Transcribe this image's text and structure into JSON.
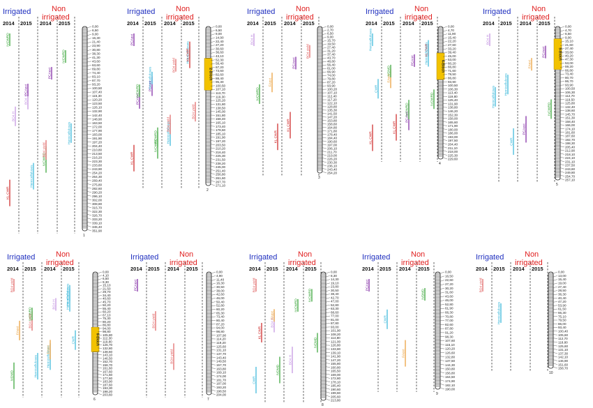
{
  "headers": {
    "irrigated": "Irrigated",
    "non_irrigated_line1": "Non",
    "non_irrigated_line2": "irrigated",
    "year_2014": "2014",
    "year_2015": "2015"
  },
  "colors": {
    "irrigated": "#1f2fbf",
    "non_irrigated": "#e02020",
    "bioch_region": "#f2c200",
    "PCAext": "#7a1fa0",
    "PCAmt": "#7a1fa0",
    "IVCWRD": "#2ea02e",
    "KL_CWR": "#cc1f1f",
    "BO4_yield": "#e06060",
    "Hemicelluloses": "#33b5d8",
    "CWR": "#33b5d8",
    "FAext": "#e89a30",
    "BO4_H": "#c090e0"
  },
  "linkage_groups": [
    {
      "id": "1",
      "positions": [
        "0,00",
        "6,50",
        "9,00",
        "16,30",
        "21,40",
        "23,90",
        "30,80",
        "38,30",
        "41,30",
        "43,60",
        "63,60",
        "69,80",
        "74,40",
        "83,10",
        "87,70",
        "93,20",
        "100,50",
        "107,40",
        "115,30",
        "120,20",
        "123,50",
        "126,10",
        "132,90",
        "142,40",
        "148,90",
        "163,50",
        "172,00",
        "177,90",
        "183,00",
        "191,90",
        "197,20",
        "204,40",
        "210,80",
        "213,50",
        "216,20",
        "223,30",
        "233,60",
        "243,90",
        "254,20",
        "264,30",
        "269,40",
        "275,80",
        "282,60",
        "290,20",
        "296,10",
        "302,00",
        "308,80",
        "315,70",
        "322,30",
        "326,70",
        "333,20",
        "339,10",
        "345,40",
        "351,90"
      ],
      "region": "",
      "traits": [
        {
          "label": "IVCWRD",
          "color": "#2ea02e"
        },
        {
          "label": "BO4 H",
          "color": "#c090e0"
        },
        {
          "label": "IVCWRD",
          "color": "#2ea02e"
        },
        {
          "label": "IVCWRD",
          "color": "#2ea02e"
        },
        {
          "label": "BO4 H",
          "color": "#c090e0"
        },
        {
          "label": "Hemicelluloses",
          "color": "#33b5d8"
        },
        {
          "label": "PCAext",
          "color": "#7a1fa0"
        },
        {
          "label": "Hemicelluloses",
          "color": "#33b5d8"
        },
        {
          "label": "KL CWR",
          "color": "#cc1f1f"
        },
        {
          "label": "PCAext",
          "color": "#7a1fa0"
        },
        {
          "label": "BO4 yield",
          "color": "#e06060"
        }
      ]
    },
    {
      "id": "2",
      "positions": [
        "0,00",
        "6,50",
        "9,00",
        "14,90",
        "22,40",
        "27,20",
        "30,60",
        "36,60",
        "43,10",
        "52,30",
        "58,40",
        "67,20",
        "73,60",
        "82,60",
        "88,40",
        "95,30",
        "100,50",
        "107,10",
        "113,70",
        "119,30",
        "125,20",
        "131,80",
        "138,50",
        "145,00",
        "151,80",
        "158,40",
        "165,10",
        "173,40",
        "178,60",
        "185,10",
        "191,90",
        "197,20",
        "203,50",
        "210,20",
        "216,40",
        "225,30",
        "231,50",
        "238,20",
        "245,00",
        "251,40",
        "256,80",
        "261,60",
        "267,70",
        "271,10"
      ],
      "region": "2-Bioch",
      "traits": [
        {
          "label": "PCAext",
          "color": "#7a1fa0"
        },
        {
          "label": "PCAmt",
          "color": "#7a1fa0"
        },
        {
          "label": "Hemicelluloses",
          "color": "#33b5d8"
        },
        {
          "label": "Hemicelluloses",
          "color": "#33b5d8"
        },
        {
          "label": "PCAext",
          "color": "#7a1fa0"
        },
        {
          "label": "IVCWRD",
          "color": "#2ea02e"
        },
        {
          "label": "BO4 yield",
          "color": "#e06060"
        },
        {
          "label": "BO4 yield",
          "color": "#e06060"
        },
        {
          "label": "KL CWR",
          "color": "#cc1f1f"
        },
        {
          "label": "Hemicelluloses",
          "color": "#33b5d8"
        },
        {
          "label": "BO4 yield",
          "color": "#e06060"
        },
        {
          "label": "KL CWR",
          "color": "#cc1f1f"
        },
        {
          "label": "IVCWRD",
          "color": "#2ea02e"
        },
        {
          "label": "IVCWRD",
          "color": "#2ea02e"
        }
      ]
    },
    {
      "id": "3",
      "positions": [
        "0,00",
        "2,70",
        "6,50",
        "9,00",
        "15,70",
        "19,50",
        "27,40",
        "31,20",
        "37,40",
        "43,70",
        "48,80",
        "56,40",
        "61,00",
        "66,90",
        "74,00",
        "79,80",
        "87,20",
        "93,90",
        "100,20",
        "107,10",
        "112,40",
        "117,20",
        "122,10",
        "128,80",
        "135,30",
        "141,50",
        "147,20",
        "153,80",
        "158,60",
        "164,80",
        "171,80",
        "178,40",
        "184,40",
        "190,60",
        "197,00",
        "206,10",
        "211,70",
        "219,00",
        "226,20",
        "230,30",
        "236,10",
        "243,40",
        "254,20"
      ],
      "region": "",
      "traits": [
        {
          "label": "BO4 H",
          "color": "#c090e0"
        },
        {
          "label": "FAext",
          "color": "#e89a30"
        },
        {
          "label": "KL CWR",
          "color": "#cc1f1f"
        },
        {
          "label": "BO4 yield",
          "color": "#e06060"
        },
        {
          "label": "IVCWRD",
          "color": "#2ea02e"
        },
        {
          "label": "KL CWR",
          "color": "#cc1f1f"
        },
        {
          "label": "PCAext",
          "color": "#7a1fa0"
        }
      ]
    },
    {
      "id": "4",
      "positions": [
        "0,00",
        "4,70",
        "11,90",
        "15,40",
        "22,20",
        "27,60",
        "33,20",
        "39,40",
        "45,00",
        "53,00",
        "60,20",
        "66,80",
        "71,60",
        "79,50",
        "86,80",
        "93,90",
        "100,50",
        "106,30",
        "113,40",
        "119,80",
        "125,40",
        "131,90",
        "138,80",
        "146,20",
        "152,30",
        "158,00",
        "165,60",
        "171,90",
        "180,00",
        "186,00",
        "193,00",
        "197,50",
        "204,40",
        "211,10",
        "218,00",
        "225,30",
        "229,60"
      ],
      "region": "4-Bioch",
      "traits": [
        {
          "label": "Hemicelluloses",
          "color": "#33b5d8"
        },
        {
          "label": "FAext",
          "color": "#e89a30"
        },
        {
          "label": "PCAext",
          "color": "#7a1fa0"
        },
        {
          "label": "KL CWR",
          "color": "#cc1f1f"
        },
        {
          "label": "CWR",
          "color": "#33b5d8"
        },
        {
          "label": "KL CWR",
          "color": "#cc1f1f"
        },
        {
          "label": "PCAmt",
          "color": "#7a1fa0"
        },
        {
          "label": "IVCWRD",
          "color": "#2ea02e"
        },
        {
          "label": "KL CWR",
          "color": "#cc1f1f"
        },
        {
          "label": "IVDMD",
          "color": "#2ea02e"
        },
        {
          "label": "IVCWRD",
          "color": "#2ea02e"
        },
        {
          "label": "Hemicelluloses",
          "color": "#33b5d8"
        }
      ]
    },
    {
      "id": "5",
      "positions": [
        "0,00",
        "4,70",
        "6,50",
        "9,00",
        "15,10",
        "21,60",
        "27,40",
        "33,60",
        "40,20",
        "47,30",
        "53,00",
        "59,20",
        "66,80",
        "73,40",
        "80,70",
        "86,70",
        "93,90",
        "100,50",
        "106,30",
        "112,70",
        "119,50",
        "125,80",
        "132,40",
        "138,60",
        "145,70",
        "151,30",
        "158,40",
        "166,00",
        "174,10",
        "181,60",
        "187,60",
        "192,70",
        "198,30",
        "205,40",
        "212,90",
        "218,10",
        "224,10",
        "231,10",
        "237,50",
        "243,60",
        "249,80",
        "254,70",
        "257,10"
      ],
      "region": "5-Bioch",
      "traits": [
        {
          "label": "BO4 H",
          "color": "#c090e0"
        },
        {
          "label": "Hemicelluloses",
          "color": "#33b5d8"
        },
        {
          "label": "PCAext",
          "color": "#7a1fa0"
        },
        {
          "label": "PCAext",
          "color": "#7a1fa0"
        },
        {
          "label": "Hemicelluloses",
          "color": "#33b5d8"
        },
        {
          "label": "CWR",
          "color": "#33b5d8"
        },
        {
          "label": "FAext",
          "color": "#e89a30"
        },
        {
          "label": "IVCWRD",
          "color": "#2ea02e"
        }
      ]
    },
    {
      "id": "6",
      "positions": [
        "0,00",
        "4,10",
        "6,50",
        "9,30",
        "15,10",
        "21,50",
        "29,70",
        "34,40",
        "40,60",
        "45,70",
        "50,20",
        "55,40",
        "60,20",
        "67,10",
        "75,30",
        "80,20",
        "86,80",
        "94,00",
        "98,80",
        "105,80",
        "112,30",
        "119,80",
        "126,70",
        "132,80",
        "138,60",
        "143,10",
        "146,50",
        "152,70",
        "158,70",
        "161,60",
        "167,60",
        "171,60",
        "177,60",
        "183,90",
        "187,60",
        "193,30",
        "198,20",
        "203,60"
      ],
      "region": "6-Bioch",
      "traits": [
        {
          "label": "BO4 yield",
          "color": "#e06060"
        },
        {
          "label": "BO4 yield",
          "color": "#e06060"
        },
        {
          "label": "Hemicelluloses",
          "color": "#33b5d8"
        },
        {
          "label": "Hemicelluloses",
          "color": "#33b5d8"
        },
        {
          "label": "FAext",
          "color": "#e89a30"
        },
        {
          "label": "Hemicelluloses",
          "color": "#33b5d8"
        },
        {
          "label": "BO4 H",
          "color": "#c090e0"
        },
        {
          "label": "CWR",
          "color": "#33b5d8"
        },
        {
          "label": "IVDMD",
          "color": "#2ea02e"
        },
        {
          "label": "IVCWRD",
          "color": "#2ea02e"
        },
        {
          "label": "FAext",
          "color": "#e89a30"
        },
        {
          "label": "Hemicelluloses",
          "color": "#33b5d8"
        }
      ]
    },
    {
      "id": "7",
      "positions": [
        "0,00",
        "4,90",
        "11,40",
        "16,30",
        "30,50",
        "38,00",
        "42,60",
        "46,00",
        "50,40",
        "52,80",
        "60,20",
        "65,30",
        "73,40",
        "80,40",
        "87,20",
        "94,00",
        "98,80",
        "107,90",
        "114,20",
        "119,20",
        "125,60",
        "131,10",
        "137,70",
        "143,40",
        "149,50",
        "157,70",
        "163,80",
        "169,10",
        "174,00",
        "181,70",
        "187,00",
        "193,20",
        "198,50",
        "204,00"
      ],
      "region": "",
      "traits": [
        {
          "label": "PCAext",
          "color": "#7a1fa0"
        },
        {
          "label": "BO4 yield",
          "color": "#e06060"
        },
        {
          "label": "BO4 yield",
          "color": "#e06060"
        }
      ]
    },
    {
      "id": "8",
      "positions": [
        "0,00",
        "8,30",
        "14,30",
        "19,10",
        "23,80",
        "30,50",
        "38,40",
        "42,70",
        "47,00",
        "52,80",
        "63,30",
        "68,60",
        "77,00",
        "81,00",
        "87,80",
        "93,00",
        "101,90",
        "108,20",
        "114,80",
        "121,00",
        "126,80",
        "133,80",
        "139,10",
        "141,90",
        "147,20",
        "155,80",
        "160,80",
        "165,50",
        "169,00",
        "172,80",
        "178,10",
        "185,40",
        "190,60",
        "199,60",
        "205,60",
        "213,80"
      ],
      "region": "",
      "traits": [
        {
          "label": "BO4 yield",
          "color": "#e06060"
        },
        {
          "label": "BO4 H",
          "color": "#c090e0"
        },
        {
          "label": "BO4 H",
          "color": "#c090e0"
        },
        {
          "label": "IVCWRD",
          "color": "#2ea02e"
        },
        {
          "label": "KL CWR",
          "color": "#cc1f1f"
        },
        {
          "label": "IVDMD",
          "color": "#2ea02e"
        },
        {
          "label": "IVCWRD",
          "color": "#2ea02e"
        },
        {
          "label": "IVDMD",
          "color": "#2ea02e"
        },
        {
          "label": "CWR",
          "color": "#33b5d8"
        },
        {
          "label": "FAext",
          "color": "#e89a30"
        }
      ]
    },
    {
      "id": "9",
      "positions": [
        "0,00",
        "16,50",
        "22,60",
        "27,20",
        "30,20",
        "31,60",
        "43,60",
        "46,00",
        "52,80",
        "61,90",
        "66,30",
        "70,80",
        "77,00",
        "82,60",
        "87,80",
        "91,20",
        "98,30",
        "107,60",
        "115,10",
        "120,20",
        "126,60",
        "132,80",
        "137,50",
        "144,30",
        "150,80",
        "156,80",
        "164,50",
        "174,90",
        "182,10",
        "190,00"
      ],
      "region": "",
      "traits": [
        {
          "label": "PCAext",
          "color": "#7a1fa0"
        },
        {
          "label": "CWR",
          "color": "#33b5d8"
        },
        {
          "label": "FAext",
          "color": "#e89a30"
        },
        {
          "label": "IVDMD",
          "color": "#2ea02e"
        }
      ]
    },
    {
      "id": "10",
      "positions": [
        "0,00",
        "13,00",
        "15,40",
        "19,00",
        "27,40",
        "28,50",
        "36,30",
        "40,40",
        "47,20",
        "53,90",
        "61,50",
        "66,30",
        "75,10",
        "79,50",
        "86,00",
        "93,40",
        "100,40",
        "105,60",
        "112,70",
        "118,80",
        "125,60",
        "131,10",
        "137,30",
        "142,10",
        "146,90",
        "151,60",
        "158,70"
      ],
      "region": "",
      "traits": [
        {
          "label": "BO4 yield",
          "color": "#e06060"
        },
        {
          "label": "Hemicelluloses",
          "color": "#33b5d8"
        }
      ]
    }
  ]
}
